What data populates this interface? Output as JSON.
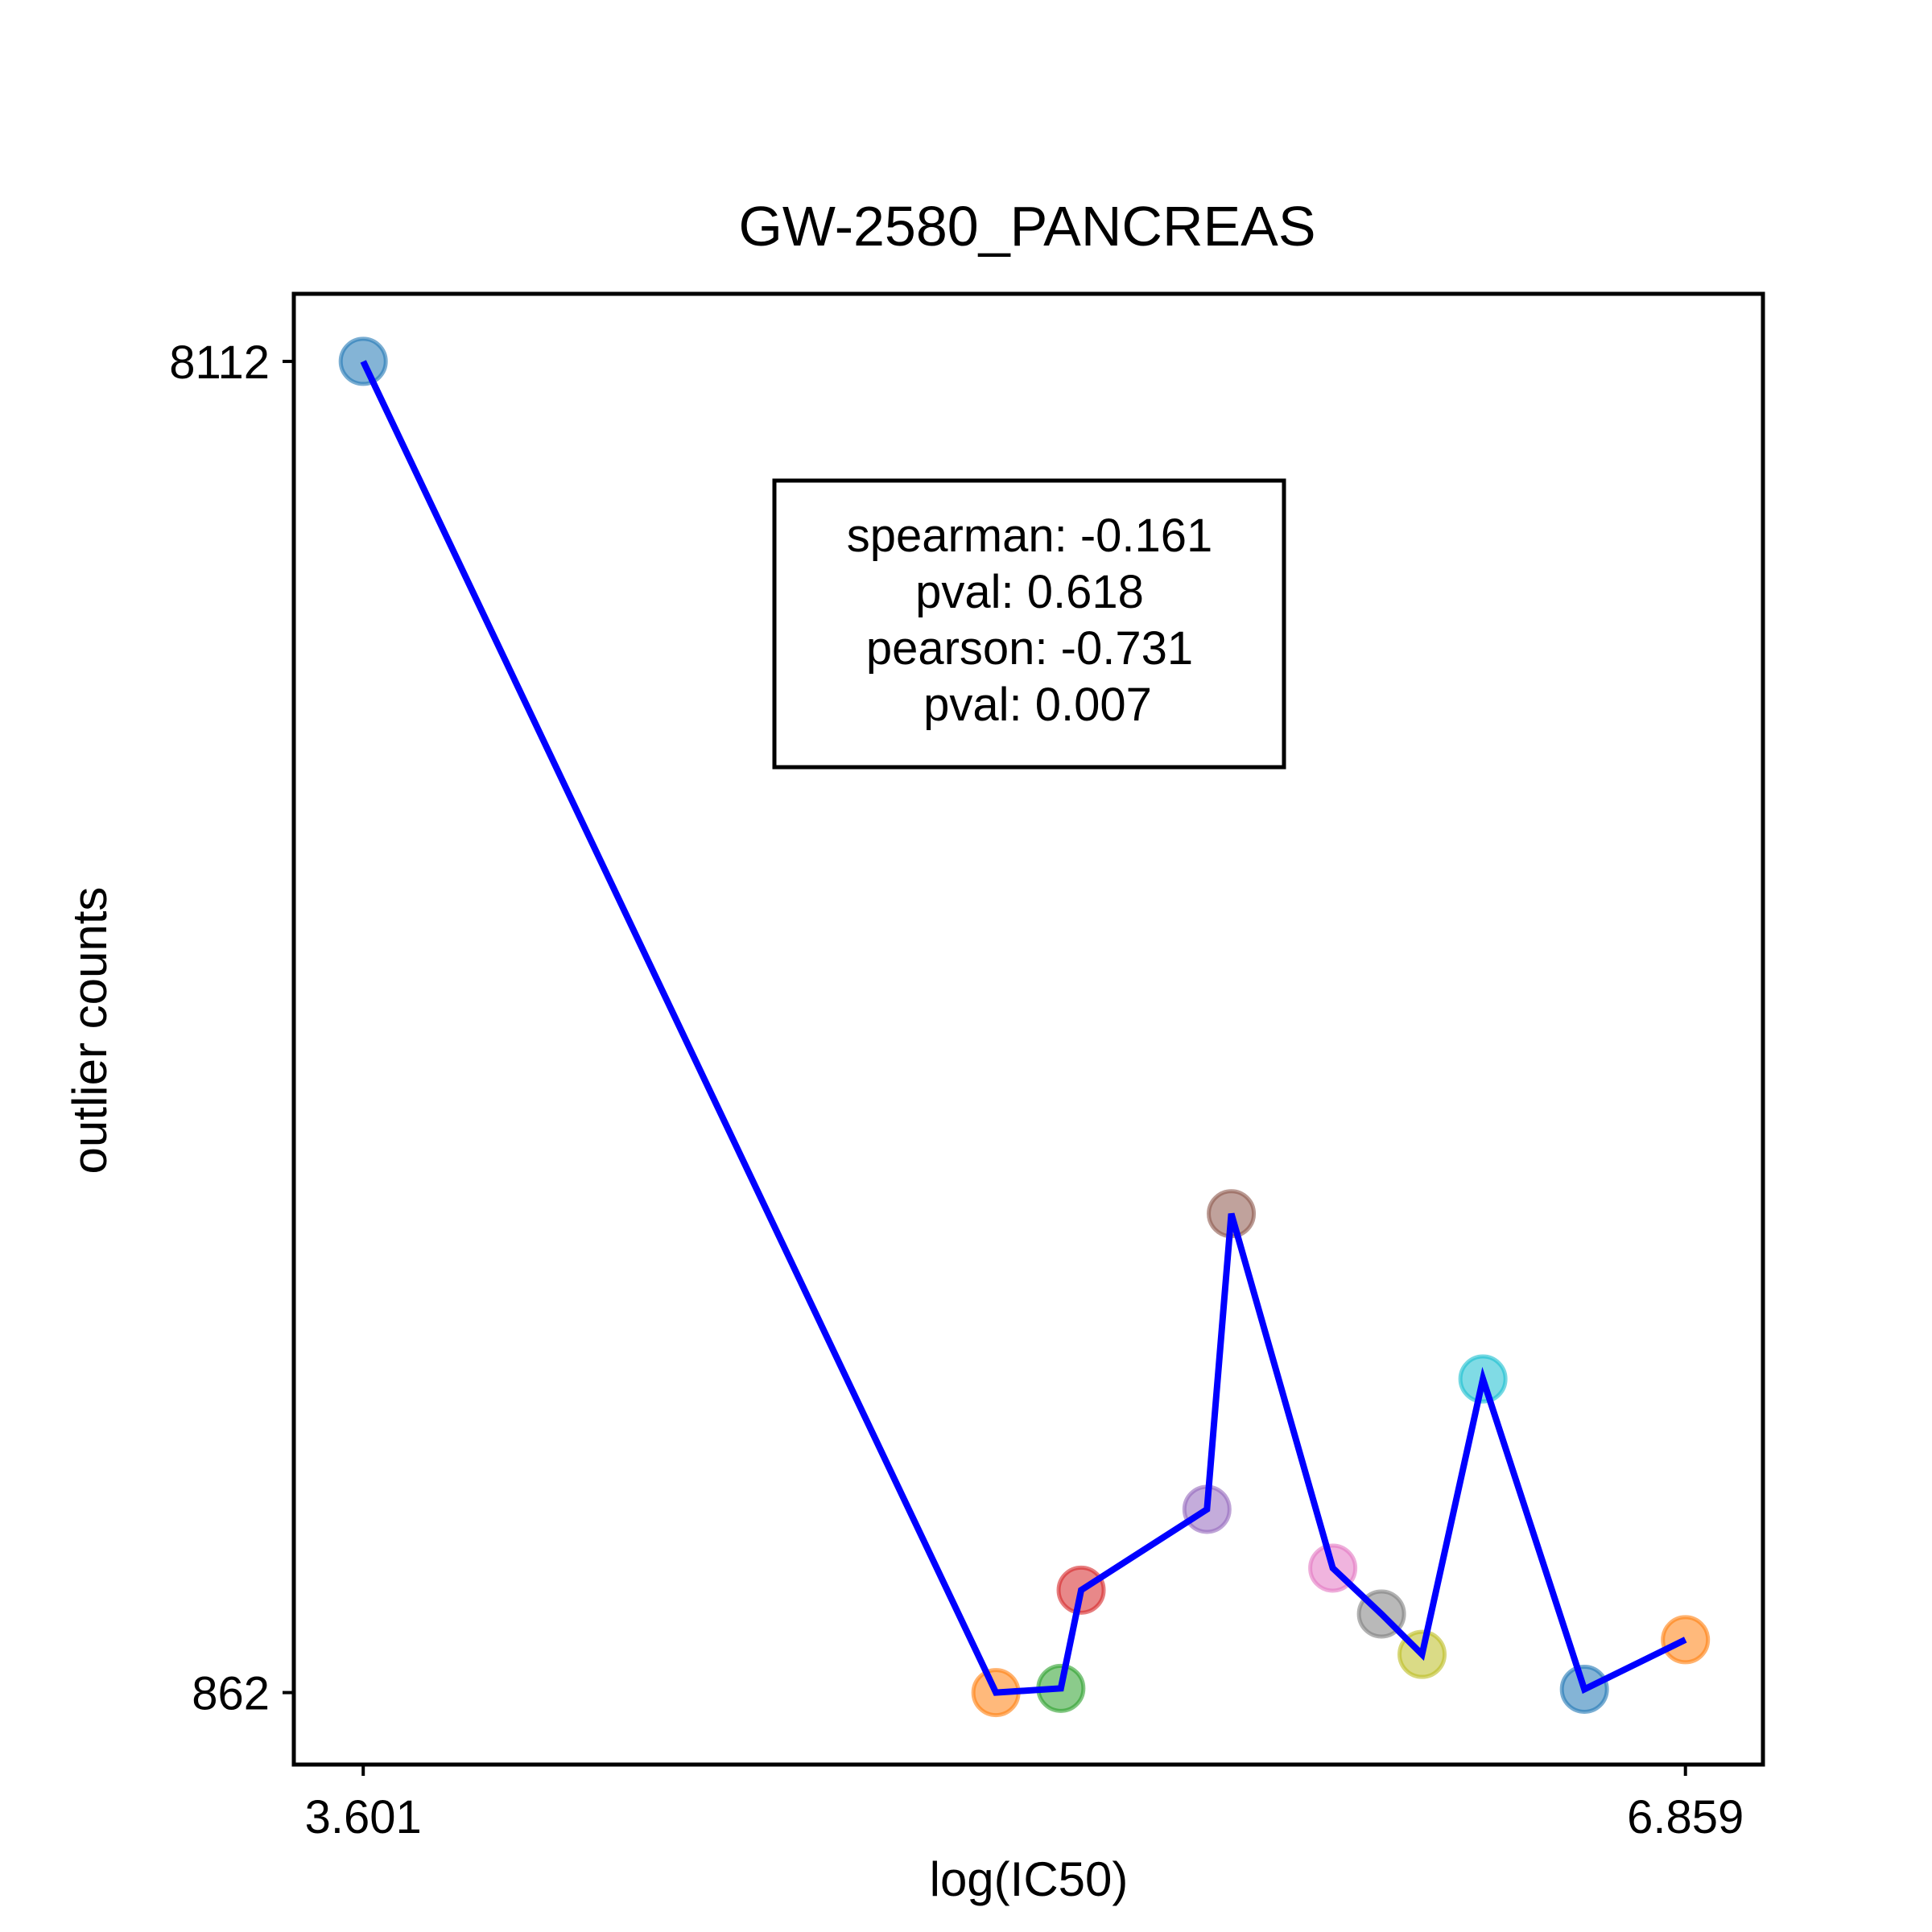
{
  "chart_data": {
    "type": "line",
    "title": "GW-2580_PANCREAS",
    "xlabel": "log(IC50)",
    "ylabel": "outlier counts",
    "x_ticks": [
      "3.601",
      "6.859"
    ],
    "y_ticks": [
      "8112",
      "862"
    ],
    "xlim": [
      3.43,
      7.05
    ],
    "ylim": [
      470,
      8480
    ],
    "grid": false,
    "line_color": "#0000ff",
    "points": [
      {
        "x": 3.601,
        "y": 8112,
        "color": "#1f77b4"
      },
      {
        "x": 5.16,
        "y": 862,
        "color": "#ff7f0e"
      },
      {
        "x": 5.32,
        "y": 885,
        "color": "#2ca02c"
      },
      {
        "x": 5.37,
        "y": 1420,
        "color": "#d62728"
      },
      {
        "x": 5.68,
        "y": 1860,
        "color": "#9467bd"
      },
      {
        "x": 5.74,
        "y": 3470,
        "color": "#8c564b"
      },
      {
        "x": 5.99,
        "y": 1540,
        "color": "#e377c2"
      },
      {
        "x": 6.11,
        "y": 1290,
        "color": "#7f7f7f"
      },
      {
        "x": 6.21,
        "y": 1070,
        "color": "#bcbd22"
      },
      {
        "x": 6.36,
        "y": 2570,
        "color": "#17becf"
      },
      {
        "x": 6.61,
        "y": 880,
        "color": "#1f77b4"
      },
      {
        "x": 6.859,
        "y": 1150,
        "color": "#ff7f0e"
      }
    ]
  },
  "annotation": {
    "lines": [
      "spearman: -0.161",
      "pval: 0.618",
      "pearson: -0.731",
      "pval: 0.007"
    ]
  }
}
